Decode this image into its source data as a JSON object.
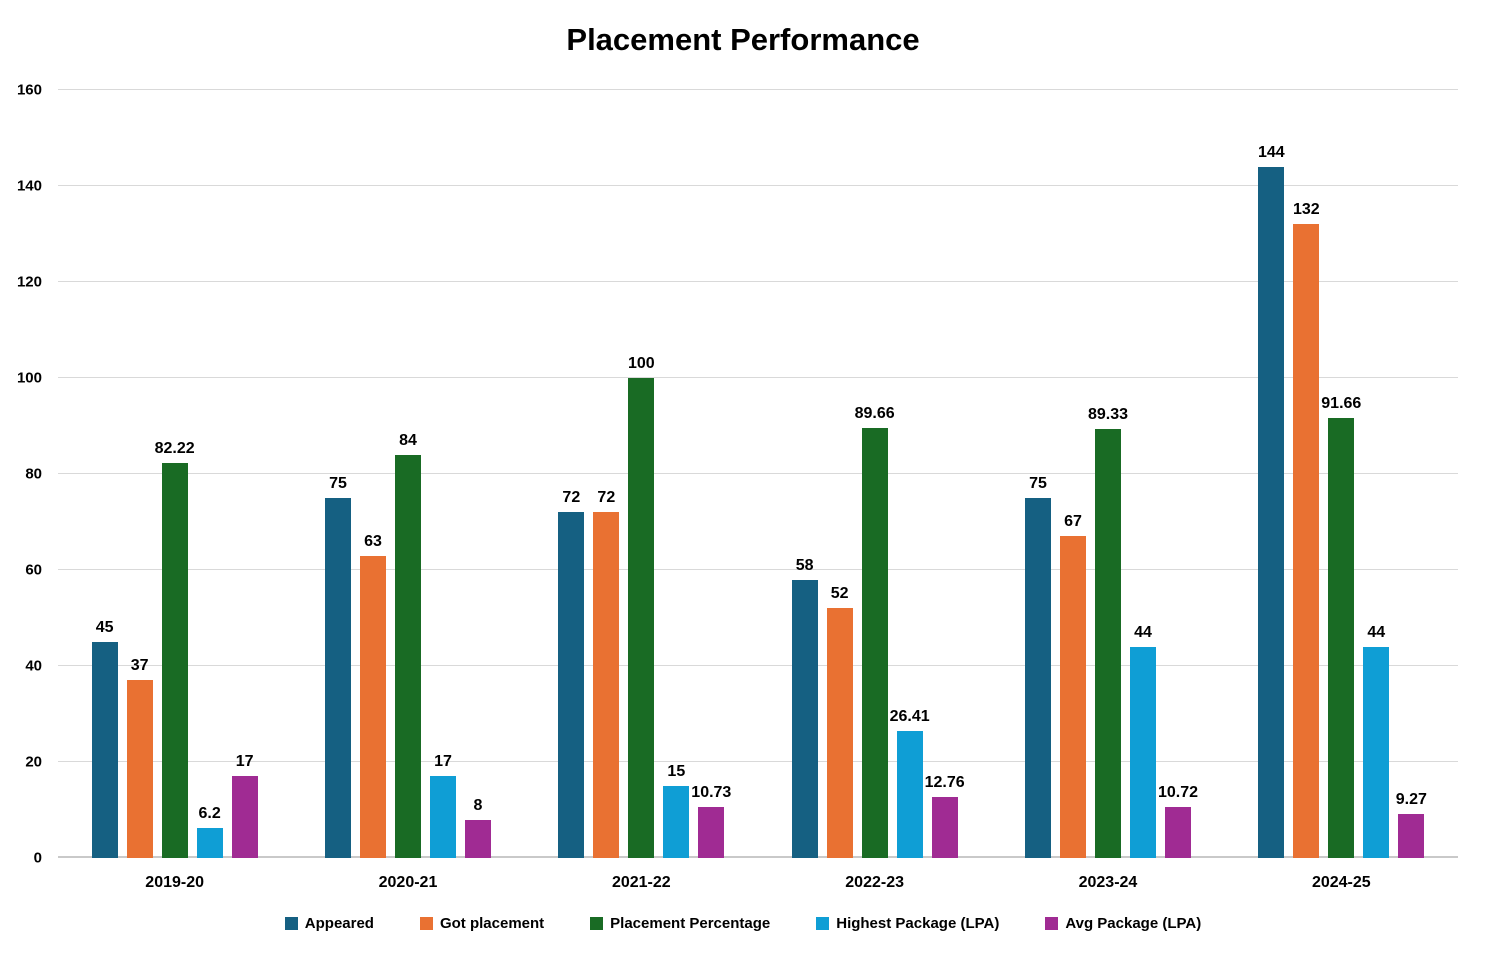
{
  "title": "Placement Performance",
  "chart_data": {
    "type": "bar",
    "title": "Placement Performance",
    "categories": [
      "2019-20",
      "2020-21",
      "2021-22",
      "2022-23",
      "2023-24",
      "2024-25"
    ],
    "series": [
      {
        "name": "Appeared",
        "color": "#156082",
        "values": [
          45,
          75,
          72,
          58,
          75,
          144
        ]
      },
      {
        "name": "Got placement",
        "color": "#E97132",
        "values": [
          37,
          63,
          72,
          52,
          67,
          132
        ]
      },
      {
        "name": "Placement Percentage",
        "color": "#196B24",
        "values": [
          82.22,
          84,
          100,
          89.66,
          89.33,
          91.66
        ]
      },
      {
        "name": "Highest Package (LPA)",
        "color": "#0F9ED5",
        "values": [
          6.2,
          17,
          15,
          26.41,
          44,
          44
        ]
      },
      {
        "name": "Avg Package  (LPA)",
        "color": "#A02B93",
        "values": [
          17,
          8,
          10.73,
          12.76,
          10.72,
          9.27
        ]
      }
    ],
    "xlabel": "",
    "ylabel": "",
    "ylim": [
      0,
      160
    ],
    "y_ticks": [
      0,
      20,
      40,
      60,
      80,
      100,
      120,
      140,
      160
    ],
    "grid": true,
    "gridline_color": "#D9D9D9",
    "axis_line_color": "#C9C9C9",
    "data_label_color": "#000000",
    "legend_position": "bottom",
    "background": "#FFFFFF"
  }
}
